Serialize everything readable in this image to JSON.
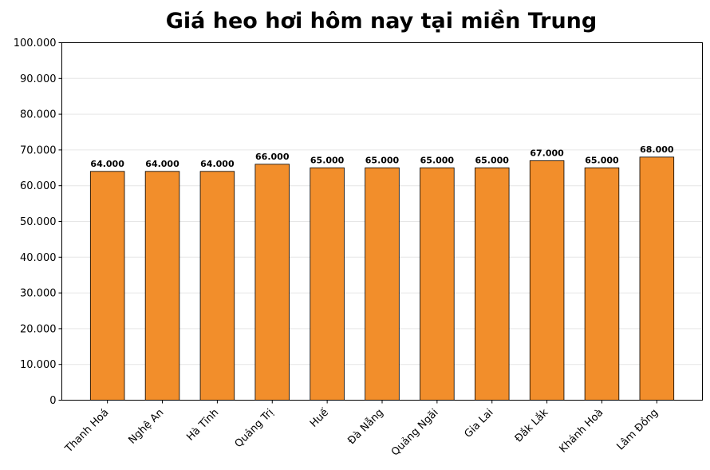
{
  "chart_data": {
    "type": "bar",
    "title": "Giá heo hơi hôm nay tại miền Trung",
    "xlabel": "",
    "ylabel": "",
    "categories": [
      "Thanh Hoá",
      "Nghệ An",
      "Hà Tĩnh",
      "Quảng Trị",
      "Huế",
      "Đà Nẵng",
      "Quảng Ngãi",
      "Gia Lai",
      "Đắk Lắk",
      "Khánh Hoà",
      "Lâm Đồng"
    ],
    "values": [
      64000,
      64000,
      64000,
      66000,
      65000,
      65000,
      65000,
      65000,
      67000,
      65000,
      68000
    ],
    "data_labels": [
      "64.000",
      "64.000",
      "64.000",
      "66.000",
      "65.000",
      "65.000",
      "65.000",
      "65.000",
      "67.000",
      "65.000",
      "68.000"
    ],
    "ylim": [
      0,
      100000
    ],
    "yticks": [
      0,
      10000,
      20000,
      30000,
      40000,
      50000,
      60000,
      70000,
      80000,
      90000,
      100000
    ],
    "ytick_labels": [
      "0",
      "10.000",
      "20.000",
      "30.000",
      "40.000",
      "50.000",
      "60.000",
      "70.000",
      "80.000",
      "90.000",
      "100.000"
    ],
    "grid": "y",
    "bar_color": "#F28E2B",
    "edge_color": "#000000"
  }
}
